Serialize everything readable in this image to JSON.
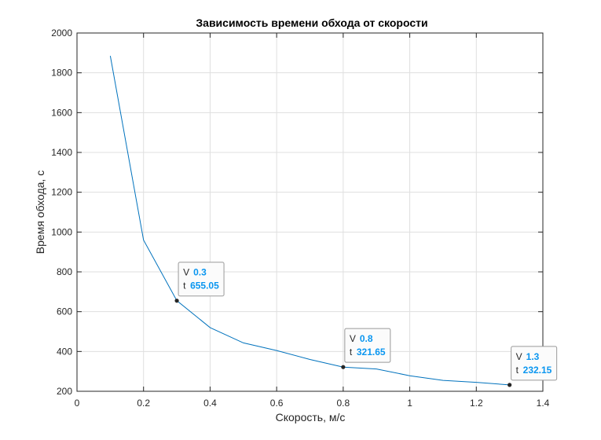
{
  "chart_data": {
    "type": "line",
    "title": "Зависимость времени обхода от скорости",
    "xlabel": "Скорость, м/с",
    "ylabel": "Время обхода, с",
    "xlim": [
      0,
      1.4
    ],
    "ylim": [
      200,
      2000
    ],
    "xticks": [
      0,
      0.2,
      0.4,
      0.6,
      0.8,
      1.0,
      1.2,
      1.4
    ],
    "xtick_labels": [
      "0",
      "0.2",
      "0.4",
      "0.6",
      "0.8",
      "1",
      "1.2",
      "1.4"
    ],
    "yticks": [
      200,
      400,
      600,
      800,
      1000,
      1200,
      1400,
      1600,
      1800,
      2000
    ],
    "ytick_labels": [
      "200",
      "400",
      "600",
      "800",
      "1000",
      "1200",
      "1400",
      "1600",
      "1800",
      "2000"
    ],
    "grid": true,
    "line_color": "#0072bd",
    "series": [
      {
        "x": [
          0.1,
          0.2,
          0.3,
          0.4,
          0.5,
          0.6,
          0.7,
          0.8,
          0.9,
          1.0,
          1.1,
          1.2,
          1.3
        ],
        "y": [
          1885,
          960,
          655.05,
          520,
          443,
          405,
          360,
          321.65,
          312,
          278,
          255,
          245,
          232.15
        ]
      }
    ],
    "datatips": [
      {
        "x_key": "V",
        "x_value": "0.3",
        "y_key": "t",
        "y_value": "655.05",
        "x": 0.3,
        "y": 655.05
      },
      {
        "x_key": "V",
        "x_value": "0.8",
        "y_key": "t",
        "y_value": "321.65",
        "x": 0.8,
        "y": 321.65
      },
      {
        "x_key": "V",
        "x_value": "1.3",
        "y_key": "t",
        "y_value": "232.15",
        "x": 1.3,
        "y": 232.15
      }
    ]
  }
}
